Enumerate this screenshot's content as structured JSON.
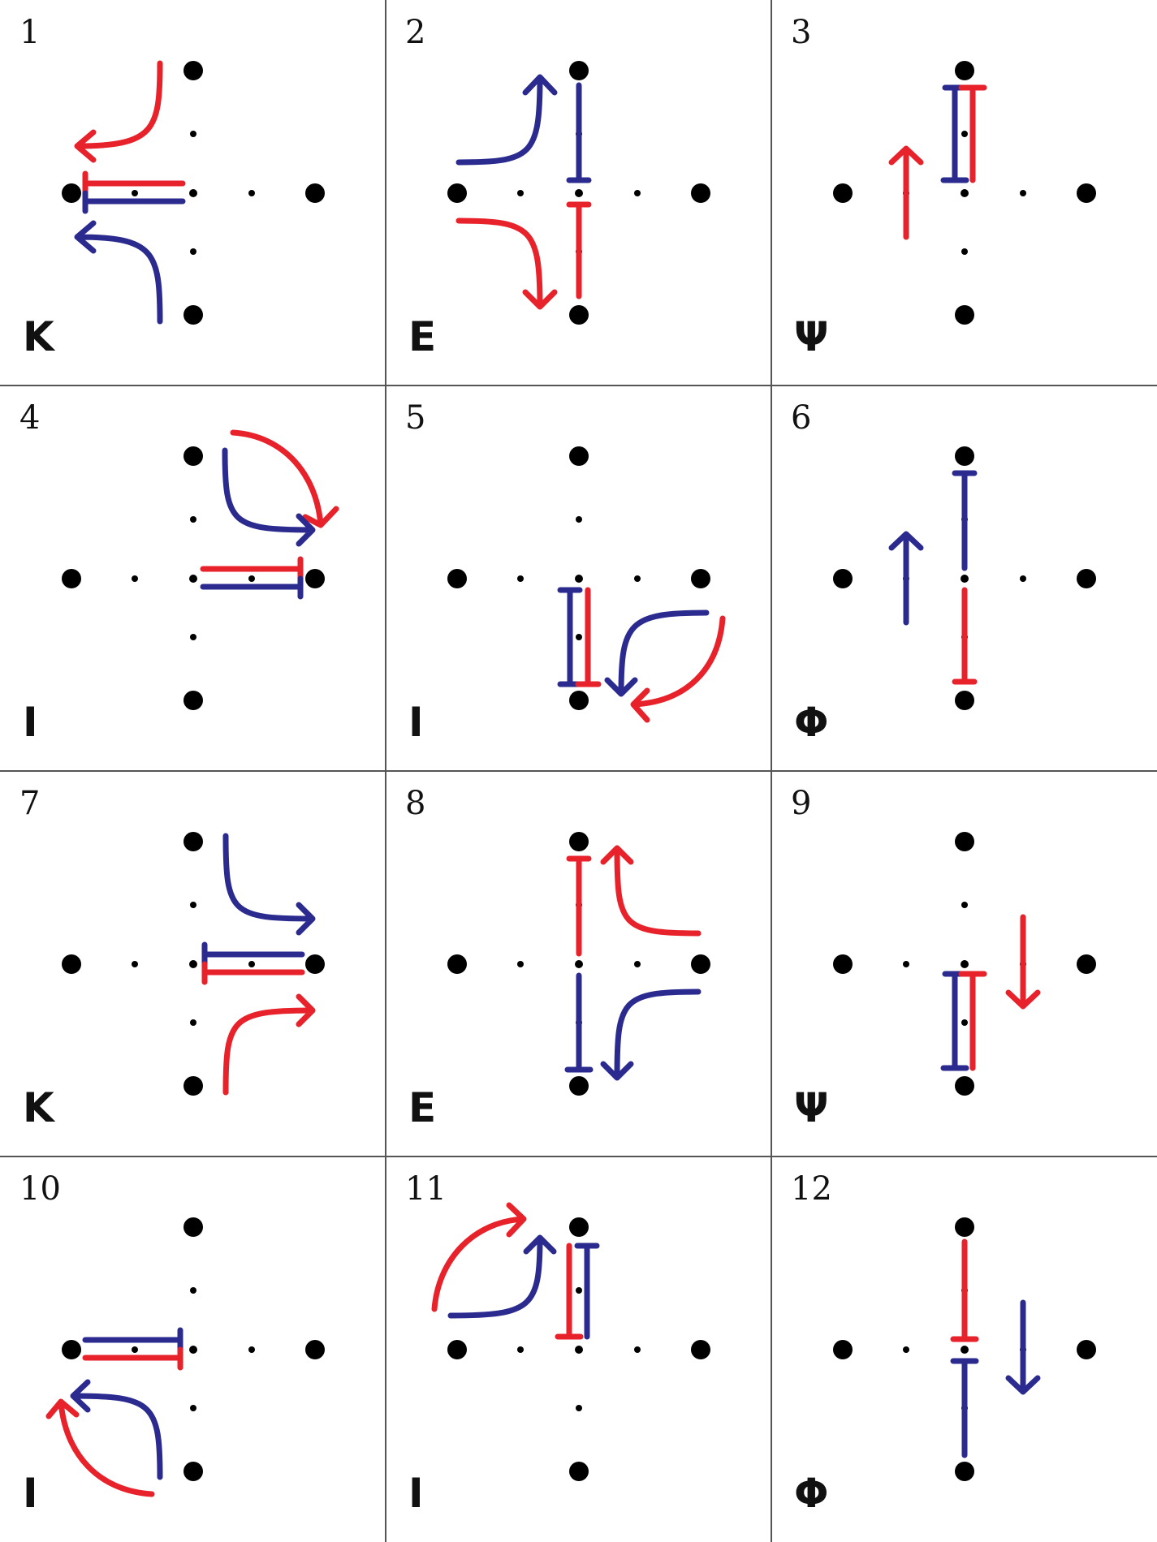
{
  "colors": {
    "red": "#e8222b",
    "blue": "#2b2b8f",
    "dot": "#000000",
    "grid": "#555555"
  },
  "panels": [
    {
      "number": "1",
      "letter": "K"
    },
    {
      "number": "2",
      "letter": "E"
    },
    {
      "number": "3",
      "letter": "Ψ"
    },
    {
      "number": "4",
      "letter": "I"
    },
    {
      "number": "5",
      "letter": "I"
    },
    {
      "number": "6",
      "letter": "Φ"
    },
    {
      "number": "7",
      "letter": "K"
    },
    {
      "number": "8",
      "letter": "E"
    },
    {
      "number": "9",
      "letter": "Ψ"
    },
    {
      "number": "10",
      "letter": "I"
    },
    {
      "number": "11",
      "letter": "I"
    },
    {
      "number": "12",
      "letter": "Φ"
    }
  ]
}
